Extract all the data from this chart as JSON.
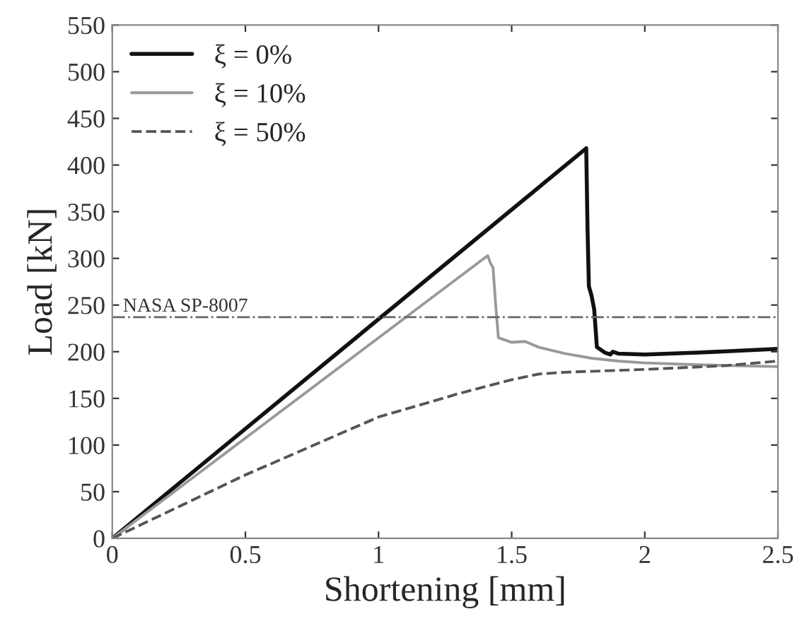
{
  "chart_data": {
    "type": "line",
    "xlabel": "Shortening [mm]",
    "ylabel": "Load [kN]",
    "xlim": [
      0,
      2.5
    ],
    "ylim": [
      0,
      550
    ],
    "xticks": [
      0,
      0.5,
      1,
      1.5,
      2,
      2.5
    ],
    "yticks": [
      0,
      50,
      100,
      150,
      200,
      250,
      300,
      350,
      400,
      450,
      500,
      550
    ],
    "grid": false,
    "legend": "top left",
    "series": [
      {
        "name": "ξ = 0%",
        "color": "#111111",
        "line_style": "solid",
        "x": [
          0,
          1.78,
          1.785,
          1.79,
          1.8,
          1.81,
          1.82,
          1.85,
          1.87,
          1.88,
          1.9,
          2.0,
          2.2,
          2.5
        ],
        "values": [
          0,
          418,
          330,
          270,
          260,
          245,
          205,
          199,
          197,
          200,
          198,
          197,
          199,
          203
        ]
      },
      {
        "name": "ξ = 10%",
        "color": "#999999",
        "line_style": "solid",
        "x": [
          0,
          1.41,
          1.42,
          1.43,
          1.44,
          1.45,
          1.47,
          1.5,
          1.55,
          1.6,
          1.7,
          1.8,
          1.9,
          2.0,
          2.2,
          2.5
        ],
        "values": [
          0,
          303,
          295,
          290,
          250,
          215,
          213,
          210,
          211,
          205,
          198,
          193,
          190,
          188,
          186,
          184
        ]
      },
      {
        "name": "ξ = 50%",
        "color": "#555555",
        "line_style": "dashed",
        "x": [
          0,
          0.5,
          1.0,
          1.3,
          1.5,
          1.6,
          1.7,
          2.0,
          2.3,
          2.5
        ],
        "values": [
          0,
          68,
          130,
          155,
          170,
          176,
          178,
          181,
          185,
          190
        ]
      }
    ],
    "ref_lines": [
      {
        "axis": "y",
        "value": 237,
        "label": "NASA SP-8007",
        "color": "#666666",
        "line_style": "dashdot"
      }
    ]
  }
}
